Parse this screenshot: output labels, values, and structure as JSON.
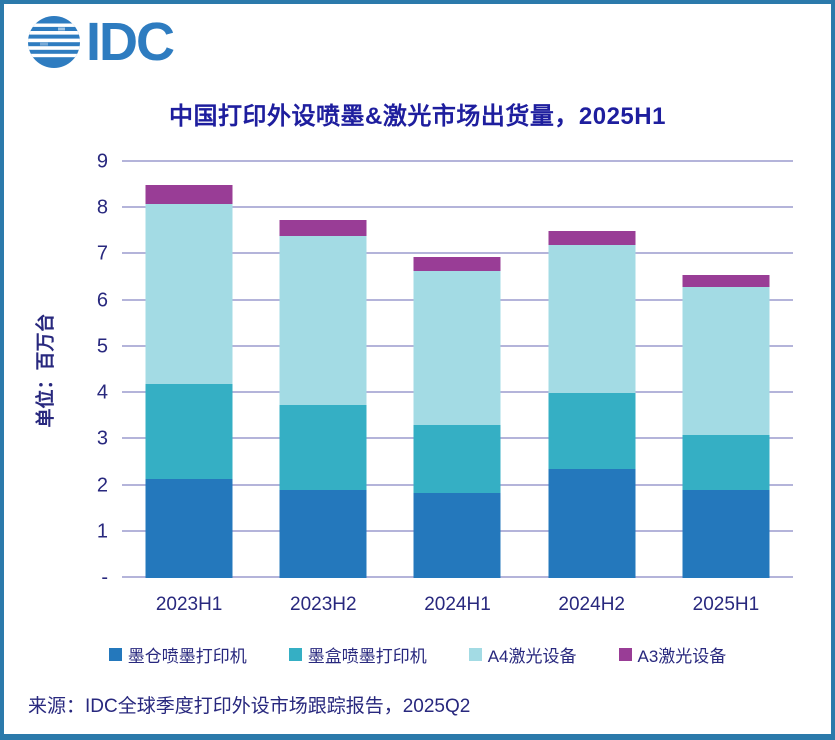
{
  "colors": {
    "frame_border": "#2b7aab",
    "background": "#ffffff",
    "logo_blue": "#2e7cc0",
    "title_text": "#1e1e9e",
    "axis_text": "#28287e",
    "gridline": "#b4b4da"
  },
  "logo": {
    "text": "IDC"
  },
  "chart_data": {
    "type": "bar",
    "stacked": true,
    "title": "中国打印外设喷墨&激光市场出货量，2025H1",
    "ylabel": "单位：百万台",
    "xlabel": "",
    "categories": [
      "2023H1",
      "2023H2",
      "2024H1",
      "2024H2",
      "2025H1"
    ],
    "series": [
      {
        "name": "墨仓喷墨打印机",
        "color": "#2478bc",
        "values": [
          2.15,
          1.9,
          1.85,
          2.35,
          1.9
        ]
      },
      {
        "name": "墨盒喷墨打印机",
        "color": "#35afc4",
        "values": [
          2.05,
          1.85,
          1.45,
          1.65,
          1.2
        ]
      },
      {
        "name": "A4激光设备",
        "color": "#a3dbe4",
        "values": [
          3.9,
          3.65,
          3.35,
          3.2,
          3.2
        ]
      },
      {
        "name": "A3激光设备",
        "color": "#993d96",
        "values": [
          0.4,
          0.35,
          0.3,
          0.3,
          0.25
        ]
      }
    ],
    "ylim": [
      0,
      9
    ],
    "ytick_step": 1,
    "ytick_zero_label": "-",
    "grid": true,
    "legend_position": "bottom"
  },
  "source_line": "来源：IDC全球季度打印外设市场跟踪报告，2025Q2"
}
